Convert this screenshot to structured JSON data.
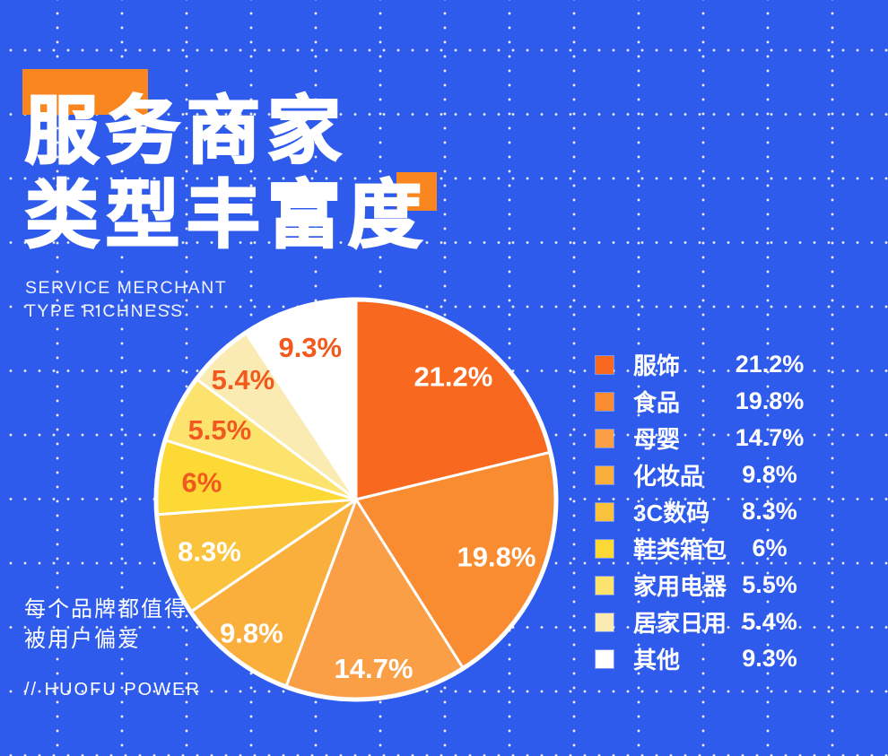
{
  "colors": {
    "background": "#2F5BEC",
    "accent_orange": "#F9861E",
    "slice_label_light": "#FFFFFF",
    "slice_label_orange": "#F2591F",
    "dot_grid": "rgba(255,252,235,0.9)"
  },
  "header": {
    "title_line1": "服务商家",
    "title_line2": "类型丰富度",
    "subtitle_line1": "SERVICE MERCHANT",
    "subtitle_line2": "TYPE RICHNESS"
  },
  "footer": {
    "tagline_line1": "每个品牌都值得",
    "tagline_line2": "被用户偏爱",
    "brand": "// HUOFU POWER"
  },
  "chart_data": {
    "type": "pie",
    "title": "服务商家类型丰富度 (Service merchant type richness)",
    "start_angle_deg": 0,
    "direction": "clockwise",
    "legend_position": "right",
    "series": [
      {
        "label": "服饰",
        "value": 21.2,
        "display": "21.2%",
        "color": "#F8691F",
        "label_color": "#FFFFFF"
      },
      {
        "label": "食品",
        "value": 19.8,
        "display": "19.8%",
        "color": "#F98B30",
        "label_color": "#FFFFFF"
      },
      {
        "label": "母婴",
        "value": 14.7,
        "display": "14.7%",
        "color": "#FA9F46",
        "label_color": "#FFFFFF"
      },
      {
        "label": "化妆品",
        "value": 9.8,
        "display": "9.8%",
        "color": "#FAAE3C",
        "label_color": "#FFFFFF"
      },
      {
        "label": "3C数码",
        "value": 8.3,
        "display": "8.3%",
        "color": "#FBC33C",
        "label_color": "#FFFFFF"
      },
      {
        "label": "鞋类箱包",
        "value": 6,
        "display": "6%",
        "color": "#FCD935",
        "label_color": "#F2591F"
      },
      {
        "label": "家用电器",
        "value": 5.5,
        "display": "5.5%",
        "color": "#FCE36E",
        "label_color": "#F2591F"
      },
      {
        "label": "居家日用",
        "value": 5.4,
        "display": "5.4%",
        "color": "#F9EBB2",
        "label_color": "#F2591F"
      },
      {
        "label": "其他",
        "value": 9.3,
        "display": "9.3%",
        "color": "#FFFFFF",
        "label_color": "#F2591F"
      }
    ],
    "layout": {
      "label_radius_factors": [
        0.79,
        0.76,
        0.85,
        0.85,
        0.78,
        0.78,
        0.77,
        0.83,
        0.8
      ]
    }
  }
}
